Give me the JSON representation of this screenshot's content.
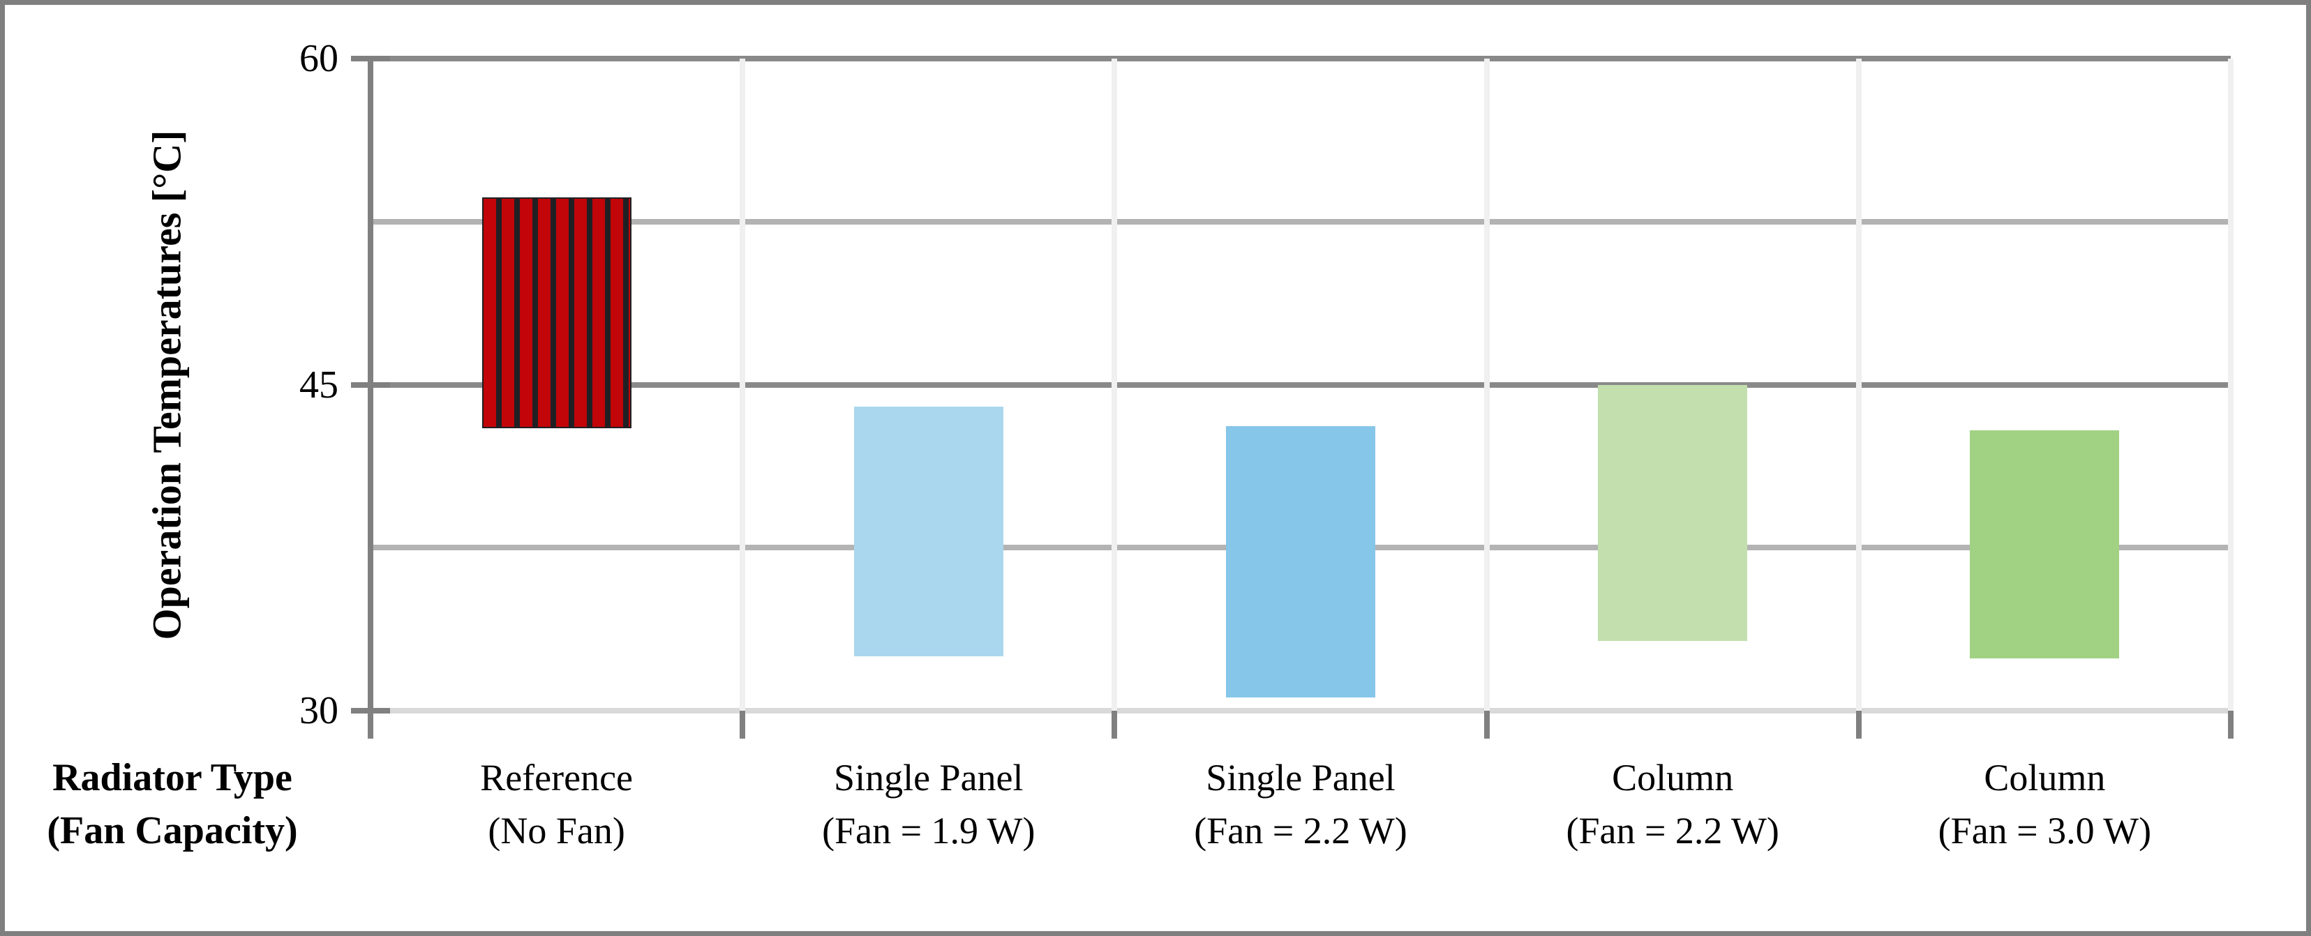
{
  "chart": {
    "y_axis_title": "Operation Temperatures [°C]",
    "x_axis_title_line1": "Radiator Type",
    "x_axis_title_line2": "(Fan Capacity)"
  },
  "chart_data": {
    "type": "bar",
    "subtype": "floating-range-bars",
    "title": "",
    "xlabel": "Radiator Type (Fan Capacity)",
    "ylabel": "Operation Temperatures [°C]",
    "ylim": [
      30,
      60
    ],
    "yticks": [
      30,
      45,
      60
    ],
    "ytick_labels": [
      "30",
      "45",
      "60"
    ],
    "minor_gridlines": [
      37.5,
      52.5
    ],
    "grid": "horizontal major and minor gridlines, faint vertical category separators",
    "legend": "none",
    "categories": [
      "Reference (No Fan)",
      "Single Panel (Fan = 1.9 W)",
      "Single Panel (Fan = 2.2 W)",
      "Column (Fan = 2.2 W)",
      "Column (Fan = 3.0 W)"
    ],
    "category_lines": [
      [
        "Reference",
        "(No Fan)"
      ],
      [
        "Single Panel",
        "(Fan = 1.9 W)"
      ],
      [
        "Single Panel",
        "(Fan = 2.2 W)"
      ],
      [
        "Column",
        "(Fan = 2.2 W)"
      ],
      [
        "Column",
        "(Fan = 3.0 W)"
      ]
    ],
    "bars": [
      {
        "category": "Reference (No Fan)",
        "low": 43.0,
        "high": 53.6,
        "fill": "#c10508",
        "pattern": "vertical-stripes",
        "stripe_color": "#202024"
      },
      {
        "category": "Single Panel (Fan = 1.9 W)",
        "low": 32.5,
        "high": 44.0,
        "fill": "#aad7ee",
        "pattern": "solid"
      },
      {
        "category": "Single Panel (Fan = 2.2 W)",
        "low": 30.6,
        "high": 43.1,
        "fill": "#86c6e9",
        "pattern": "solid"
      },
      {
        "category": "Column (Fan = 2.2 W)",
        "low": 33.2,
        "high": 45.0,
        "fill": "#c2dfad",
        "pattern": "solid"
      },
      {
        "category": "Column (Fan = 3.0 W)",
        "low": 32.4,
        "high": 42.9,
        "fill": "#a1d283",
        "pattern": "solid"
      }
    ],
    "colors": {
      "major_gridline": "#898989",
      "minor_gridline": "#b3b3b3",
      "bottom_axis_line": "#d9d9d9",
      "axis_and_ticks": "#808080",
      "category_separator": "#f0f0f0",
      "frame_border": "#7f7f7f",
      "text": "#000000"
    }
  }
}
